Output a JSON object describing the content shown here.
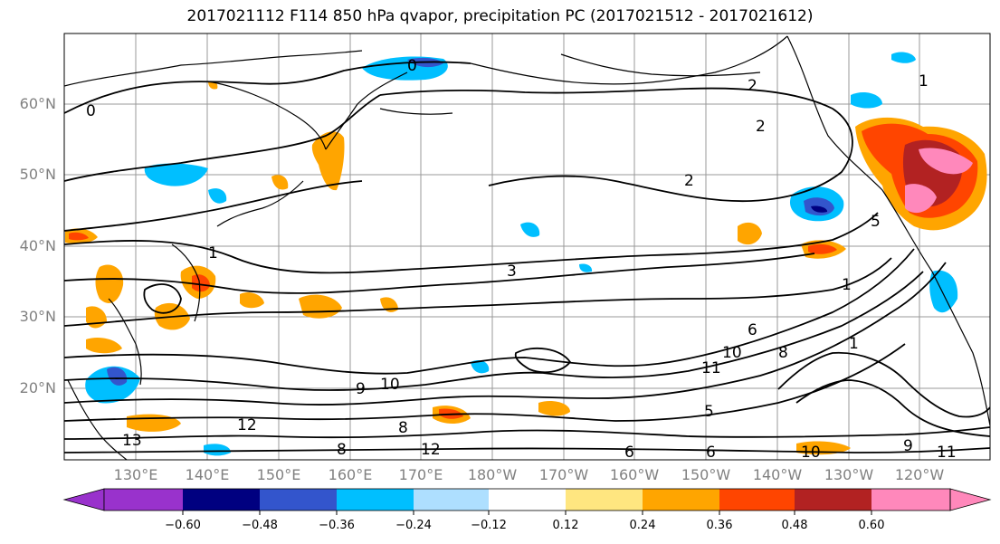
{
  "title": "2017021112 F114 850 hPa qvapor, precipitation PC (2017021512 - 2017021612)",
  "lat_labels": [
    "60°N",
    "50°N",
    "40°N",
    "30°N",
    "20°N"
  ],
  "lon_labels": [
    "130°E",
    "140°E",
    "150°E",
    "160°E",
    "170°E",
    "180°W",
    "170°W",
    "160°W",
    "150°W",
    "140°W",
    "130°W",
    "120°W"
  ],
  "contour_labels": [
    "0",
    "0",
    "2",
    "2",
    "2",
    "3",
    "5",
    "6",
    "8",
    "10",
    "9",
    "10",
    "11",
    "12",
    "13",
    "8",
    "1",
    "6",
    "5",
    "6",
    "10",
    "9",
    "11",
    "12",
    "8",
    "1",
    "1",
    "1"
  ],
  "colorbar": {
    "ticks": [
      "−0.60",
      "−0.48",
      "−0.36",
      "−0.24",
      "−0.12",
      "0.12",
      "0.24",
      "0.36",
      "0.48",
      "0.60"
    ],
    "colors": [
      "#9932CC",
      "#000080",
      "#3355CC",
      "#00BFFF",
      "#AEDFFF",
      "#FFFFFF",
      "#FFE680",
      "#FFA500",
      "#FF4500",
      "#B22222",
      "#FF88BB"
    ]
  }
}
